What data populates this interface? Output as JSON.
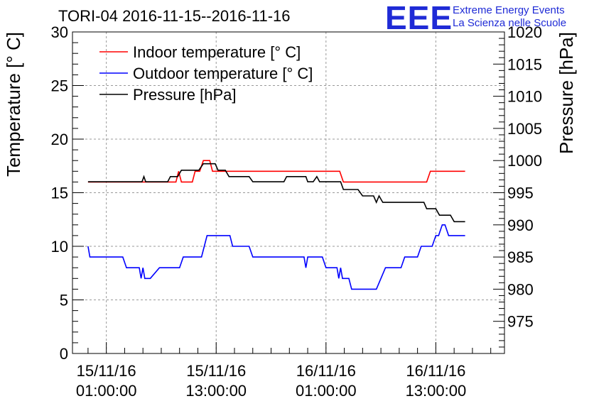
{
  "header": {
    "title": "TORI-04 2016-11-15--2016-11-16",
    "logo_text": "EEE",
    "logo_line1": "Extreme Energy Events",
    "logo_line2": "La Scienza nelle Scuole"
  },
  "chart_data": {
    "type": "line",
    "title": "TORI-04 2016-11-15--2016-11-16",
    "ylabel": "Temperature [° C]",
    "y2label": "Pressure [hPa]",
    "ylim": [
      0,
      30
    ],
    "y2lim": [
      970,
      1020
    ],
    "yticks": [
      "0",
      "5",
      "10",
      "15",
      "20",
      "25",
      "30"
    ],
    "y2ticks": [
      "975",
      "980",
      "985",
      "990",
      "995",
      "1000",
      "1005",
      "1010",
      "1015",
      "1020"
    ],
    "xlim": [
      -3.7,
      43.5
    ],
    "xticks": [
      {
        "x": 0,
        "line1": "15/11/16",
        "line2": "01:00:00"
      },
      {
        "x": 12,
        "line1": "15/11/16",
        "line2": "13:00:00"
      },
      {
        "x": 24,
        "line1": "16/11/16",
        "line2": "01:00:00"
      },
      {
        "x": 36,
        "line1": "16/11/16",
        "line2": "13:00:00"
      }
    ],
    "xunit": "hours since 15/11/16 01:00:00",
    "grid": true,
    "legend_position": "top-left",
    "series": [
      {
        "name": "Indoor temperature [° C]",
        "color": "#ff0000",
        "axis": "left",
        "points": [
          [
            -2,
            16
          ],
          [
            7.6,
            16
          ],
          [
            7.9,
            17
          ],
          [
            8.2,
            16
          ],
          [
            9.4,
            16
          ],
          [
            9.7,
            17
          ],
          [
            10.2,
            17
          ],
          [
            10.6,
            18
          ],
          [
            11.3,
            18
          ],
          [
            11.6,
            17
          ],
          [
            25.5,
            17
          ],
          [
            25.9,
            16
          ],
          [
            35,
            16
          ],
          [
            35.4,
            17
          ],
          [
            39.2,
            17
          ]
        ]
      },
      {
        "name": "Outdoor temperature [° C]",
        "color": "#0000ff",
        "axis": "left",
        "points": [
          [
            -2,
            10
          ],
          [
            -1.8,
            9
          ],
          [
            1.8,
            9
          ],
          [
            2.2,
            8
          ],
          [
            3.6,
            8
          ],
          [
            3.8,
            7
          ],
          [
            4,
            8
          ],
          [
            4.2,
            7
          ],
          [
            4.8,
            7
          ],
          [
            5.8,
            8
          ],
          [
            8,
            8
          ],
          [
            8.4,
            9
          ],
          [
            10.4,
            9
          ],
          [
            10.7,
            10
          ],
          [
            11,
            11
          ],
          [
            12.1,
            11
          ],
          [
            13.5,
            11
          ],
          [
            13.8,
            10
          ],
          [
            15.6,
            10
          ],
          [
            16,
            9
          ],
          [
            19.5,
            9
          ],
          [
            21.6,
            9
          ],
          [
            21.8,
            8
          ],
          [
            22,
            9
          ],
          [
            23.6,
            9
          ],
          [
            24,
            8
          ],
          [
            25.2,
            8
          ],
          [
            25.4,
            7
          ],
          [
            25.6,
            8
          ],
          [
            25.8,
            7
          ],
          [
            26.5,
            7
          ],
          [
            26.8,
            6
          ],
          [
            29.5,
            6
          ],
          [
            30,
            7
          ],
          [
            30.5,
            8
          ],
          [
            32.2,
            8
          ],
          [
            32.6,
            9
          ],
          [
            34,
            9
          ],
          [
            34.4,
            10
          ],
          [
            35.6,
            10
          ],
          [
            36,
            11
          ],
          [
            36.3,
            11
          ],
          [
            36.7,
            12
          ],
          [
            37,
            12
          ],
          [
            37.4,
            11
          ],
          [
            39.2,
            11
          ]
        ]
      },
      {
        "name": "Pressure [hPa]",
        "color": "#000000",
        "axis": "right",
        "points": [
          [
            -2,
            996.7
          ],
          [
            3.9,
            996.7
          ],
          [
            4.1,
            997.5
          ],
          [
            4.3,
            996.7
          ],
          [
            6.7,
            996.7
          ],
          [
            7,
            997.5
          ],
          [
            7.8,
            997.5
          ],
          [
            8.2,
            998.5
          ],
          [
            10.1,
            998.5
          ],
          [
            10.6,
            999.5
          ],
          [
            11.9,
            999.5
          ],
          [
            12.2,
            998.5
          ],
          [
            13,
            998.5
          ],
          [
            13.4,
            997.5
          ],
          [
            15.6,
            997.5
          ],
          [
            16,
            996.7
          ],
          [
            19.4,
            996.7
          ],
          [
            19.7,
            997.5
          ],
          [
            21.8,
            997.5
          ],
          [
            22,
            996.7
          ],
          [
            22.6,
            996.7
          ],
          [
            23,
            997.5
          ],
          [
            23.3,
            996.7
          ],
          [
            24.6,
            996.7
          ],
          [
            25.6,
            996.7
          ],
          [
            25.9,
            995.5
          ],
          [
            27.5,
            995.5
          ],
          [
            28,
            994.5
          ],
          [
            29.2,
            994.5
          ],
          [
            29.5,
            993.5
          ],
          [
            29.8,
            994.5
          ],
          [
            30.2,
            993.5
          ],
          [
            34.7,
            993.5
          ],
          [
            35,
            992.5
          ],
          [
            36,
            992.5
          ],
          [
            36.4,
            991.5
          ],
          [
            37.6,
            991.5
          ],
          [
            38,
            990.5
          ],
          [
            39.2,
            990.5
          ]
        ]
      }
    ]
  }
}
